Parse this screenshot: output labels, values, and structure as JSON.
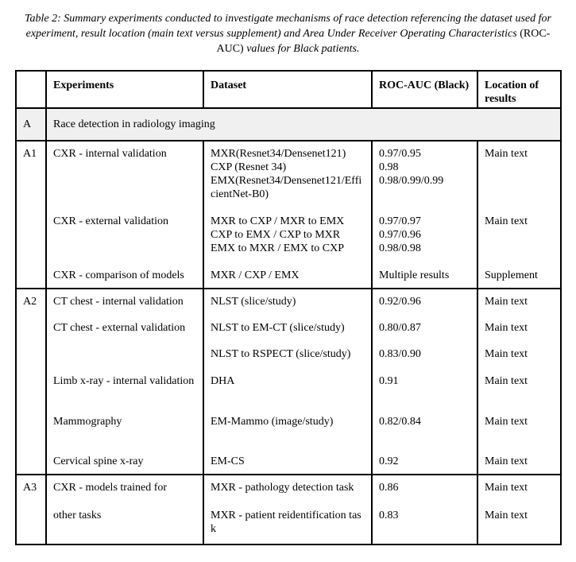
{
  "caption": {
    "main": "Table 2: Summary experiments conducted to investigate mechanisms of race detection referencing the dataset used for experiment, result location (main text versus supplement) and Area Under Receiver Operating Characteristics ",
    "abbr": "(ROC-AUC)",
    "tail": " values for Black patients."
  },
  "headers": [
    "",
    "Experiments",
    "Dataset",
    "ROC-AUC (Black)",
    "Location of results"
  ],
  "section": {
    "id": "A",
    "label": "Race detection in radiology imaging"
  },
  "rows": [
    {
      "id": "A1",
      "experiment": "CXR - internal validation",
      "dataset": [
        "MXR(Resnet34/Densenet121)",
        "CXP (Resnet 34)",
        "EMX(Resnet34/Densenet121/EfficientNet-B0)"
      ],
      "auc": [
        "0.97/0.95",
        "0.98",
        "0.98/0.99/0.99"
      ],
      "location": "Main text"
    },
    {
      "id": "",
      "experiment": "CXR - external validation",
      "dataset": [
        "MXR to CXP / MXR to EMX",
        "CXP to EMX / CXP to MXR",
        "EMX to MXR / EMX to CXP"
      ],
      "auc": [
        "0.97/0.97",
        "0.97/0.96",
        "0.98/0.98"
      ],
      "location": "Main text"
    },
    {
      "id": "",
      "experiment": "CXR - comparison of models",
      "dataset": [
        "MXR / CXP / EMX"
      ],
      "auc": [
        "Multiple results"
      ],
      "location": "Supplement"
    },
    {
      "id": "A2",
      "experiment": "CT chest - internal validation",
      "dataset": [
        "NLST (slice/study)"
      ],
      "auc": [
        "0.92/0.96"
      ],
      "location": "Main text"
    },
    {
      "id": "",
      "experiment": "CT chest - external validation",
      "dataset": [
        "NLST to EM-CT (slice/study)"
      ],
      "auc": [
        "0.80/0.87"
      ],
      "location": "Main text"
    },
    {
      "id": "",
      "experiment": "",
      "dataset": [
        "NLST to RSPECT (slice/study)"
      ],
      "auc": [
        "0.83/0.90"
      ],
      "location": "Main text"
    },
    {
      "id": "",
      "experiment": "Limb x-ray -  internal validation",
      "dataset": [
        "DHA"
      ],
      "auc": [
        "0.91"
      ],
      "location": "Main text"
    },
    {
      "id": "",
      "experiment": "Mammography",
      "dataset": [
        "EM-Mammo (image/study)"
      ],
      "auc": [
        "0.82/0.84"
      ],
      "location": "Main text"
    },
    {
      "id": "",
      "experiment": "Cervical spine x-ray",
      "dataset": [
        "EM-CS"
      ],
      "auc": [
        "0.92"
      ],
      "location": "Main text"
    },
    {
      "id": "A3",
      "experiment": "CXR - models trained for",
      "dataset": [
        "MXR - pathology detection task"
      ],
      "auc": [
        "0.86"
      ],
      "location": "Main text"
    },
    {
      "id": "",
      "experiment": "other tasks",
      "dataset": [
        "MXR - patient reidentification task"
      ],
      "auc": [
        "0.83"
      ],
      "location": "Main text"
    }
  ]
}
